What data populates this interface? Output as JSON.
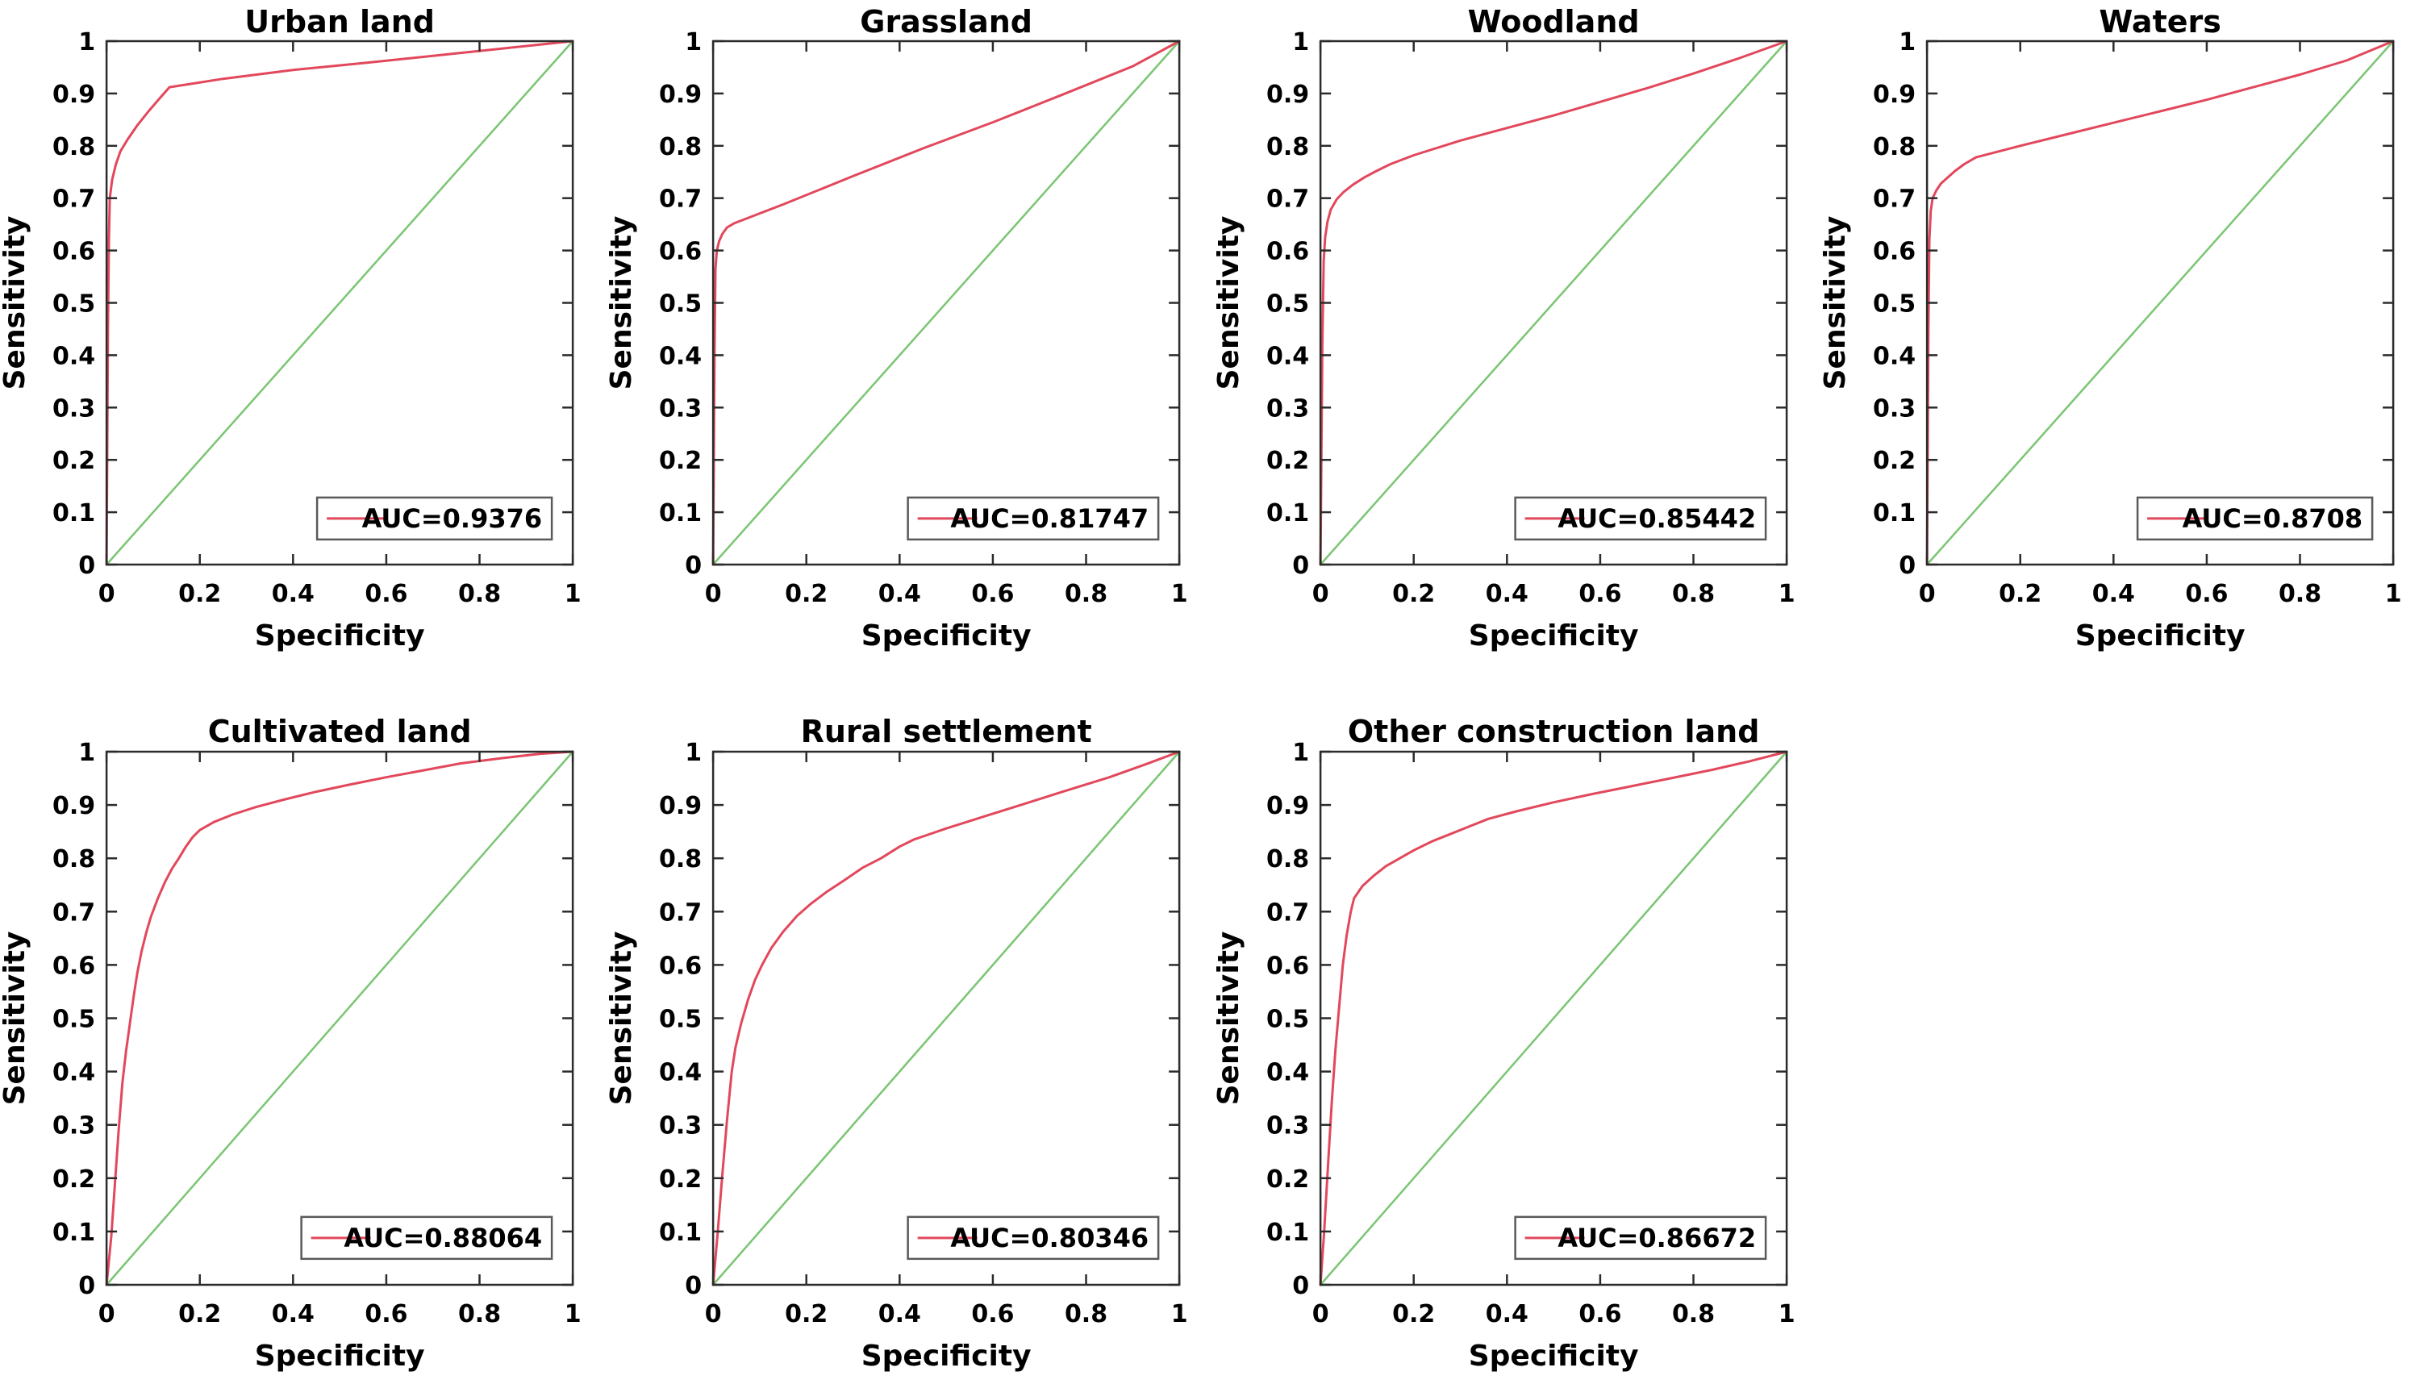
{
  "figure": {
    "description": "ROC curves per land-cover class",
    "rows": [
      [
        0,
        1,
        2,
        3
      ],
      [
        4,
        5,
        6,
        null
      ]
    ]
  },
  "style": {
    "background": "#ffffff",
    "roc_color": "#e2485c",
    "diagonal_color": "#7ac573",
    "axis_color": "#2b2b2b",
    "legend_border_color": "#5a5a5a",
    "text_color": "#000000"
  },
  "chart_data": [
    {
      "type": "line",
      "title": "Urban land",
      "xlabel": "Specificity",
      "ylabel": "Sensitivity",
      "xlim": [
        0,
        1
      ],
      "ylim": [
        0,
        1
      ],
      "x_tick_labels": [
        "0",
        "0.2",
        "0.4",
        "0.6",
        "0.8",
        "1"
      ],
      "y_tick_labels": [
        "0",
        "0.1",
        "0.2",
        "0.3",
        "0.4",
        "0.5",
        "0.6",
        "0.7",
        "0.8",
        "0.9",
        "1"
      ],
      "auc": 0.9376,
      "legend": {
        "label": "AUC=0.9376",
        "position": "southeast"
      },
      "series": [
        {
          "name": "ROC curve",
          "points": [
            [
              0,
              0
            ],
            [
              0.003,
              0.45
            ],
            [
              0.005,
              0.62
            ],
            [
              0.007,
              0.7
            ],
            [
              0.012,
              0.735
            ],
            [
              0.02,
              0.765
            ],
            [
              0.03,
              0.79
            ],
            [
              0.045,
              0.812
            ],
            [
              0.065,
              0.838
            ],
            [
              0.09,
              0.866
            ],
            [
              0.115,
              0.892
            ],
            [
              0.135,
              0.912
            ],
            [
              0.25,
              0.928
            ],
            [
              0.4,
              0.945
            ],
            [
              0.55,
              0.958
            ],
            [
              0.7,
              0.972
            ],
            [
              0.85,
              0.986
            ],
            [
              1,
              1
            ]
          ]
        },
        {
          "name": "reference diagonal",
          "points": [
            [
              0,
              0
            ],
            [
              1,
              1
            ]
          ]
        }
      ]
    },
    {
      "type": "line",
      "title": "Grassland",
      "xlabel": "Specificity",
      "ylabel": "Sensitivity",
      "xlim": [
        0,
        1
      ],
      "ylim": [
        0,
        1
      ],
      "x_tick_labels": [
        "0",
        "0.2",
        "0.4",
        "0.6",
        "0.8",
        "1"
      ],
      "y_tick_labels": [
        "0",
        "0.1",
        "0.2",
        "0.3",
        "0.4",
        "0.5",
        "0.6",
        "0.7",
        "0.8",
        "0.9",
        "1"
      ],
      "auc": 0.81747,
      "legend": {
        "label": "AUC=0.81747",
        "position": "southeast"
      },
      "series": [
        {
          "name": "ROC curve",
          "points": [
            [
              0,
              0
            ],
            [
              0.003,
              0.4
            ],
            [
              0.005,
              0.565
            ],
            [
              0.008,
              0.6
            ],
            [
              0.013,
              0.618
            ],
            [
              0.02,
              0.632
            ],
            [
              0.03,
              0.644
            ],
            [
              0.045,
              0.652
            ],
            [
              0.15,
              0.688
            ],
            [
              0.3,
              0.742
            ],
            [
              0.45,
              0.795
            ],
            [
              0.6,
              0.845
            ],
            [
              0.75,
              0.898
            ],
            [
              0.9,
              0.952
            ],
            [
              1,
              1
            ]
          ]
        },
        {
          "name": "reference diagonal",
          "points": [
            [
              0,
              0
            ],
            [
              1,
              1
            ]
          ]
        }
      ]
    },
    {
      "type": "line",
      "title": "Woodland",
      "xlabel": "Specificity",
      "ylabel": "Sensitivity",
      "xlim": [
        0,
        1
      ],
      "ylim": [
        0,
        1
      ],
      "x_tick_labels": [
        "0",
        "0.2",
        "0.4",
        "0.6",
        "0.8",
        "1"
      ],
      "y_tick_labels": [
        "0",
        "0.1",
        "0.2",
        "0.3",
        "0.4",
        "0.5",
        "0.6",
        "0.7",
        "0.8",
        "0.9",
        "1"
      ],
      "auc": 0.85442,
      "legend": {
        "label": "AUC=0.85442",
        "position": "southeast"
      },
      "series": [
        {
          "name": "ROC curve",
          "points": [
            [
              0,
              0
            ],
            [
              0.004,
              0.42
            ],
            [
              0.007,
              0.58
            ],
            [
              0.01,
              0.625
            ],
            [
              0.015,
              0.655
            ],
            [
              0.022,
              0.678
            ],
            [
              0.035,
              0.698
            ],
            [
              0.05,
              0.712
            ],
            [
              0.07,
              0.726
            ],
            [
              0.095,
              0.74
            ],
            [
              0.12,
              0.752
            ],
            [
              0.15,
              0.765
            ],
            [
              0.2,
              0.782
            ],
            [
              0.3,
              0.81
            ],
            [
              0.4,
              0.834
            ],
            [
              0.5,
              0.858
            ],
            [
              0.6,
              0.884
            ],
            [
              0.7,
              0.91
            ],
            [
              0.8,
              0.938
            ],
            [
              0.9,
              0.968
            ],
            [
              1,
              1
            ]
          ]
        },
        {
          "name": "reference diagonal",
          "points": [
            [
              0,
              0
            ],
            [
              1,
              1
            ]
          ]
        }
      ]
    },
    {
      "type": "line",
      "title": "Waters",
      "xlabel": "Specificity",
      "ylabel": "Sensitivity",
      "xlim": [
        0,
        1
      ],
      "ylim": [
        0,
        1
      ],
      "x_tick_labels": [
        "0",
        "0.2",
        "0.4",
        "0.6",
        "0.8",
        "1"
      ],
      "y_tick_labels": [
        "0",
        "0.1",
        "0.2",
        "0.3",
        "0.4",
        "0.5",
        "0.6",
        "0.7",
        "0.8",
        "0.9",
        "1"
      ],
      "auc": 0.8708,
      "legend": {
        "label": "AUC=0.8708",
        "position": "southeast"
      },
      "series": [
        {
          "name": "ROC curve",
          "points": [
            [
              0,
              0
            ],
            [
              0.003,
              0.45
            ],
            [
              0.005,
              0.62
            ],
            [
              0.008,
              0.675
            ],
            [
              0.012,
              0.7
            ],
            [
              0.02,
              0.715
            ],
            [
              0.03,
              0.728
            ],
            [
              0.045,
              0.74
            ],
            [
              0.06,
              0.752
            ],
            [
              0.08,
              0.765
            ],
            [
              0.105,
              0.778
            ],
            [
              0.2,
              0.8
            ],
            [
              0.3,
              0.822
            ],
            [
              0.4,
              0.844
            ],
            [
              0.5,
              0.866
            ],
            [
              0.6,
              0.888
            ],
            [
              0.7,
              0.912
            ],
            [
              0.8,
              0.936
            ],
            [
              0.9,
              0.963
            ],
            [
              1,
              1
            ]
          ]
        },
        {
          "name": "reference diagonal",
          "points": [
            [
              0,
              0
            ],
            [
              1,
              1
            ]
          ]
        }
      ]
    },
    {
      "type": "line",
      "title": "Cultivated land",
      "xlabel": "Specificity",
      "ylabel": "Sensitivity",
      "xlim": [
        0,
        1
      ],
      "ylim": [
        0,
        1
      ],
      "x_tick_labels": [
        "0",
        "0.2",
        "0.4",
        "0.6",
        "0.8",
        "1"
      ],
      "y_tick_labels": [
        "0",
        "0.1",
        "0.2",
        "0.3",
        "0.4",
        "0.5",
        "0.6",
        "0.7",
        "0.8",
        "0.9",
        "1"
      ],
      "auc": 0.88064,
      "legend": {
        "label": "AUC=0.88064",
        "position": "southeast"
      },
      "series": [
        {
          "name": "ROC curve",
          "points": [
            [
              0,
              0
            ],
            [
              0.01,
              0.09
            ],
            [
              0.018,
              0.19
            ],
            [
              0.026,
              0.29
            ],
            [
              0.034,
              0.38
            ],
            [
              0.042,
              0.44
            ],
            [
              0.05,
              0.49
            ],
            [
              0.058,
              0.54
            ],
            [
              0.066,
              0.585
            ],
            [
              0.075,
              0.625
            ],
            [
              0.085,
              0.66
            ],
            [
              0.095,
              0.69
            ],
            [
              0.11,
              0.725
            ],
            [
              0.125,
              0.755
            ],
            [
              0.14,
              0.78
            ],
            [
              0.155,
              0.8
            ],
            [
              0.17,
              0.822
            ],
            [
              0.185,
              0.84
            ],
            [
              0.2,
              0.853
            ],
            [
              0.23,
              0.868
            ],
            [
              0.27,
              0.882
            ],
            [
              0.32,
              0.896
            ],
            [
              0.38,
              0.91
            ],
            [
              0.45,
              0.925
            ],
            [
              0.52,
              0.938
            ],
            [
              0.6,
              0.952
            ],
            [
              0.68,
              0.965
            ],
            [
              0.76,
              0.978
            ],
            [
              0.85,
              0.988
            ],
            [
              0.93,
              0.996
            ],
            [
              1,
              1
            ]
          ]
        },
        {
          "name": "reference diagonal",
          "points": [
            [
              0,
              0
            ],
            [
              1,
              1
            ]
          ]
        }
      ]
    },
    {
      "type": "line",
      "title": "Rural settlement",
      "xlabel": "Specificity",
      "ylabel": "Sensitivity",
      "xlim": [
        0,
        1
      ],
      "ylim": [
        0,
        1
      ],
      "x_tick_labels": [
        "0",
        "0.2",
        "0.4",
        "0.6",
        "0.8",
        "1"
      ],
      "y_tick_labels": [
        "0",
        "0.1",
        "0.2",
        "0.3",
        "0.4",
        "0.5",
        "0.6",
        "0.7",
        "0.8",
        "0.9",
        "1"
      ],
      "auc": 0.80346,
      "legend": {
        "label": "AUC=0.80346",
        "position": "southeast"
      },
      "series": [
        {
          "name": "ROC curve",
          "points": [
            [
              0,
              0
            ],
            [
              0.01,
              0.1
            ],
            [
              0.02,
              0.21
            ],
            [
              0.03,
              0.31
            ],
            [
              0.04,
              0.4
            ],
            [
              0.048,
              0.445
            ],
            [
              0.06,
              0.49
            ],
            [
              0.075,
              0.535
            ],
            [
              0.09,
              0.572
            ],
            [
              0.105,
              0.6
            ],
            [
              0.125,
              0.632
            ],
            [
              0.15,
              0.662
            ],
            [
              0.18,
              0.692
            ],
            [
              0.21,
              0.715
            ],
            [
              0.245,
              0.738
            ],
            [
              0.28,
              0.758
            ],
            [
              0.32,
              0.782
            ],
            [
              0.36,
              0.8
            ],
            [
              0.4,
              0.822
            ],
            [
              0.43,
              0.835
            ],
            [
              0.5,
              0.856
            ],
            [
              0.58,
              0.878
            ],
            [
              0.66,
              0.9
            ],
            [
              0.75,
              0.925
            ],
            [
              0.85,
              0.952
            ],
            [
              0.93,
              0.977
            ],
            [
              1,
              1
            ]
          ]
        },
        {
          "name": "reference diagonal",
          "points": [
            [
              0,
              0
            ],
            [
              1,
              1
            ]
          ]
        }
      ]
    },
    {
      "type": "line",
      "title": "Other construction land",
      "xlabel": "Specificity",
      "ylabel": "Sensitivity",
      "xlim": [
        0,
        1
      ],
      "ylim": [
        0,
        1
      ],
      "x_tick_labels": [
        "0",
        "0.2",
        "0.4",
        "0.6",
        "0.8",
        "1"
      ],
      "y_tick_labels": [
        "0",
        "0.1",
        "0.2",
        "0.3",
        "0.4",
        "0.5",
        "0.6",
        "0.7",
        "0.8",
        "0.9",
        "1"
      ],
      "auc": 0.86672,
      "legend": {
        "label": "AUC=0.86672",
        "position": "southeast"
      },
      "series": [
        {
          "name": "ROC curve",
          "points": [
            [
              0,
              0
            ],
            [
              0.008,
              0.1
            ],
            [
              0.016,
              0.22
            ],
            [
              0.024,
              0.34
            ],
            [
              0.032,
              0.44
            ],
            [
              0.04,
              0.52
            ],
            [
              0.048,
              0.6
            ],
            [
              0.056,
              0.655
            ],
            [
              0.065,
              0.7
            ],
            [
              0.072,
              0.725
            ],
            [
              0.09,
              0.748
            ],
            [
              0.115,
              0.768
            ],
            [
              0.14,
              0.785
            ],
            [
              0.17,
              0.8
            ],
            [
              0.2,
              0.815
            ],
            [
              0.24,
              0.832
            ],
            [
              0.28,
              0.846
            ],
            [
              0.32,
              0.86
            ],
            [
              0.36,
              0.874
            ],
            [
              0.42,
              0.888
            ],
            [
              0.5,
              0.905
            ],
            [
              0.58,
              0.92
            ],
            [
              0.66,
              0.934
            ],
            [
              0.75,
              0.95
            ],
            [
              0.84,
              0.966
            ],
            [
              0.92,
              0.982
            ],
            [
              1,
              1
            ]
          ]
        },
        {
          "name": "reference diagonal",
          "points": [
            [
              0,
              0
            ],
            [
              1,
              1
            ]
          ]
        }
      ]
    }
  ]
}
